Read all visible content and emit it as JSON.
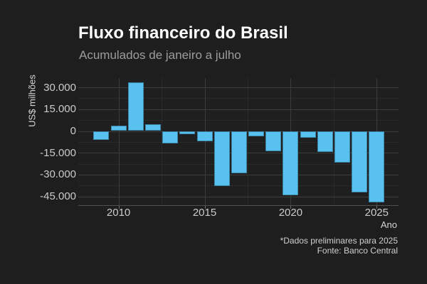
{
  "chart_data": {
    "type": "bar",
    "title": "Fluxo financeiro do Brasil",
    "subtitle": "Acumulados de janeiro a julho",
    "xlabel": "Ano",
    "ylabel": "US$ milhões",
    "caption_line1": "*Dados preliminares para 2025",
    "caption_line2": "Fonte: Banco Central",
    "categories": [
      2009,
      2010,
      2011,
      2012,
      2013,
      2014,
      2015,
      2016,
      2017,
      2018,
      2019,
      2020,
      2021,
      2022,
      2023,
      2024,
      2025
    ],
    "values": [
      -6000,
      3800,
      33300,
      4600,
      -8600,
      -2200,
      -7100,
      -38000,
      -29000,
      -3800,
      -13700,
      -44200,
      -4700,
      -14200,
      -21900,
      -42500,
      -49000
    ],
    "x_ticks": [
      2010,
      2015,
      2020,
      2025
    ],
    "y_ticks": [
      {
        "value": 30000,
        "label": "30.000"
      },
      {
        "value": 15000,
        "label": "15.000"
      },
      {
        "value": 0,
        "label": "0"
      },
      {
        "value": -15000,
        "label": "-15.000"
      },
      {
        "value": -30000,
        "label": "-30.000"
      },
      {
        "value": -45000,
        "label": "-45.000"
      }
    ],
    "ylim": [
      -52500,
      37000
    ],
    "grid": "major and minor gridlines, dark theme",
    "legend": "none",
    "colors": {
      "bar": "#58C1F0",
      "background": "#1E1E1E",
      "grid_major": "#3C3C3C",
      "grid_minor": "#2A2A2A",
      "axis_line": "#4F4F4F",
      "title": "#FFFFFF",
      "subtitle": "#9C9C9C",
      "tick_label": "#CBCBCB",
      "axis_title": "#D6D6D6",
      "caption": "#D0D0D0"
    }
  }
}
